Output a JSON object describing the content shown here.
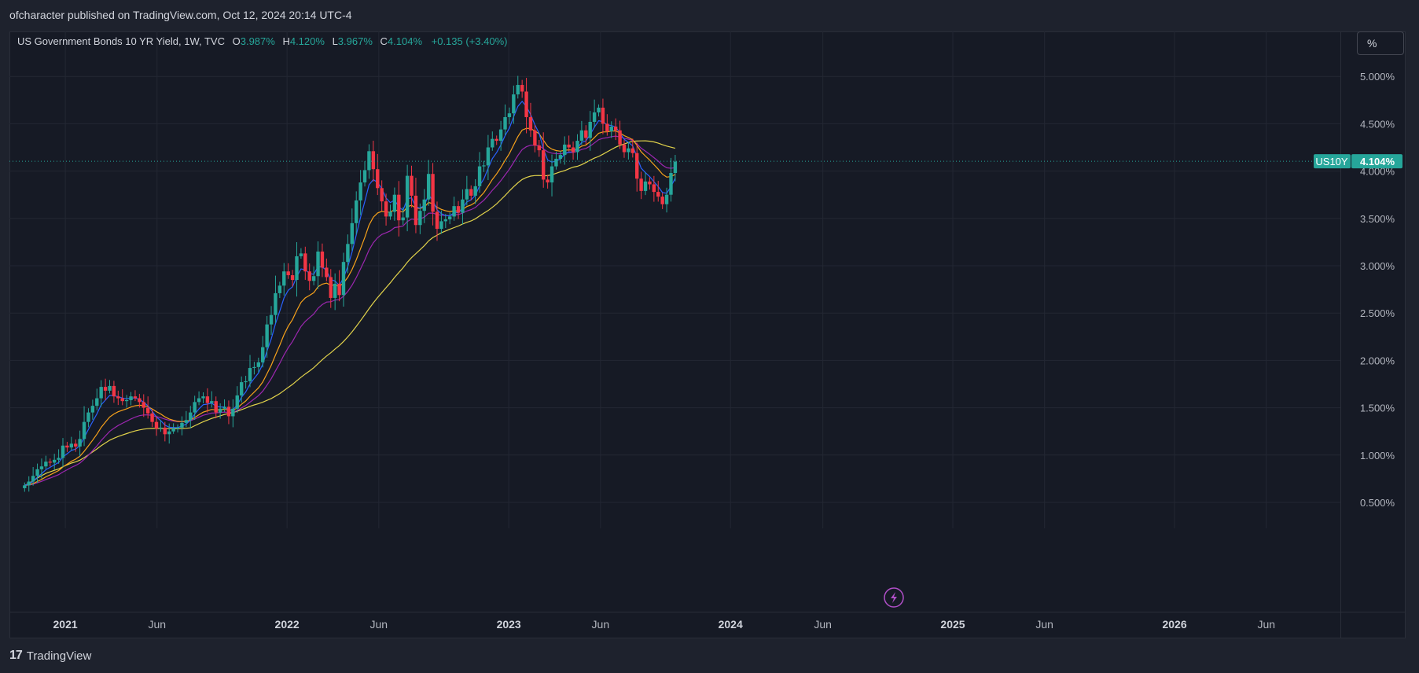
{
  "header": {
    "publisher_text": "ofcharacter published on TradingView.com, Oct 12, 2024 20:14 UTC-4"
  },
  "legend": {
    "symbol": "US Government Bonds 10 YR Yield, 1W, TVC",
    "open_label": "O",
    "open": "3.987%",
    "high_label": "H",
    "high": "4.120%",
    "low_label": "L",
    "low": "3.967%",
    "close_label": "C",
    "close": "4.104%",
    "change": "+0.135 (+3.40%)"
  },
  "scale_button": {
    "label": "%"
  },
  "price_tag": {
    "ticker": "US10Y",
    "value": "4.104%"
  },
  "footer": {
    "brand": "TradingView",
    "logo_mark": "17"
  },
  "colors": {
    "up": "#26a69a",
    "down": "#f23645",
    "background": "#161a25",
    "ema_short": "#2962ff",
    "ema_mid": "#f7a21b",
    "ema_long": "#9c27b0",
    "sma": "#e2d34b"
  },
  "chart_data": {
    "type": "candlestick",
    "title": "US Government Bonds 10 YR Yield, 1W, TVC",
    "y_ticks": [
      "5.000%",
      "4.500%",
      "4.000%",
      "3.500%",
      "3.000%",
      "2.500%",
      "2.000%",
      "1.500%",
      "1.000%",
      "0.500%"
    ],
    "y_tick_values": [
      5.0,
      4.5,
      4.0,
      3.5,
      3.0,
      2.5,
      2.0,
      1.5,
      1.0,
      0.5
    ],
    "ylim": [
      0.25,
      5.3
    ],
    "x_ticks": [
      "2021",
      "Jun",
      "2022",
      "Jun",
      "2023",
      "Jun",
      "2024",
      "Jun",
      "2025",
      "Jun",
      "2026",
      "Jun"
    ],
    "x_tick_dates": [
      "2021-01",
      "2021-06",
      "2022-01",
      "2022-06",
      "2023-01",
      "2023-06",
      "2024-01",
      "2024-06",
      "2025-01",
      "2025-06",
      "2026-01",
      "2026-06"
    ],
    "xlim": [
      "2020-10",
      "2026-10"
    ],
    "last_price": 4.104,
    "closes_weekly": {
      "start": "2020-10-26",
      "values": [
        0.68,
        0.72,
        0.78,
        0.85,
        0.88,
        0.93,
        0.92,
        0.95,
        0.97,
        1.1,
        1.08,
        1.12,
        1.09,
        1.17,
        1.35,
        1.45,
        1.52,
        1.6,
        1.72,
        1.68,
        1.73,
        1.62,
        1.6,
        1.57,
        1.58,
        1.62,
        1.6,
        1.56,
        1.5,
        1.44,
        1.35,
        1.28,
        1.29,
        1.22,
        1.25,
        1.28,
        1.29,
        1.34,
        1.37,
        1.45,
        1.56,
        1.6,
        1.62,
        1.55,
        1.57,
        1.45,
        1.49,
        1.51,
        1.41,
        1.49,
        1.63,
        1.77,
        1.78,
        1.92,
        1.93,
        1.98,
        2.14,
        2.38,
        2.48,
        2.71,
        2.79,
        2.94,
        2.9,
        2.85,
        3.1,
        3.13,
        2.94,
        2.84,
        2.89,
        3.15,
        2.98,
        2.88,
        2.66,
        2.81,
        2.69,
        3.04,
        3.23,
        3.45,
        3.69,
        3.88,
        4.01,
        4.21,
        4.02,
        3.82,
        3.68,
        3.52,
        3.57,
        3.75,
        3.48,
        3.51,
        3.95,
        3.74,
        3.43,
        3.58,
        3.7,
        3.97,
        3.57,
        3.39,
        3.47,
        3.49,
        3.52,
        3.63,
        3.56,
        3.7,
        3.81,
        3.74,
        3.84,
        4.05,
        4.06,
        4.25,
        4.34,
        4.32,
        4.44,
        4.57,
        4.61,
        4.81,
        4.91,
        4.84,
        4.57,
        4.43,
        4.27,
        4.22,
        3.91,
        3.88,
        4.05,
        4.13,
        4.17,
        4.28,
        4.25,
        4.2,
        4.32,
        4.43,
        4.35,
        4.52,
        4.62,
        4.67,
        4.5,
        4.42,
        4.47,
        4.43,
        4.28,
        4.2,
        4.24,
        4.19,
        3.92,
        3.79,
        3.89,
        3.86,
        3.78,
        3.73,
        3.65,
        3.75,
        3.98,
        4.1
      ]
    },
    "moving_averages": [
      {
        "color": "#2962ff",
        "type": "ema",
        "length": 5
      },
      {
        "color": "#f7a21b",
        "type": "ema",
        "length": 13
      },
      {
        "color": "#9c27b0",
        "type": "ema",
        "length": 21
      },
      {
        "color": "#e2d34b",
        "type": "sma",
        "length": 40
      }
    ]
  }
}
